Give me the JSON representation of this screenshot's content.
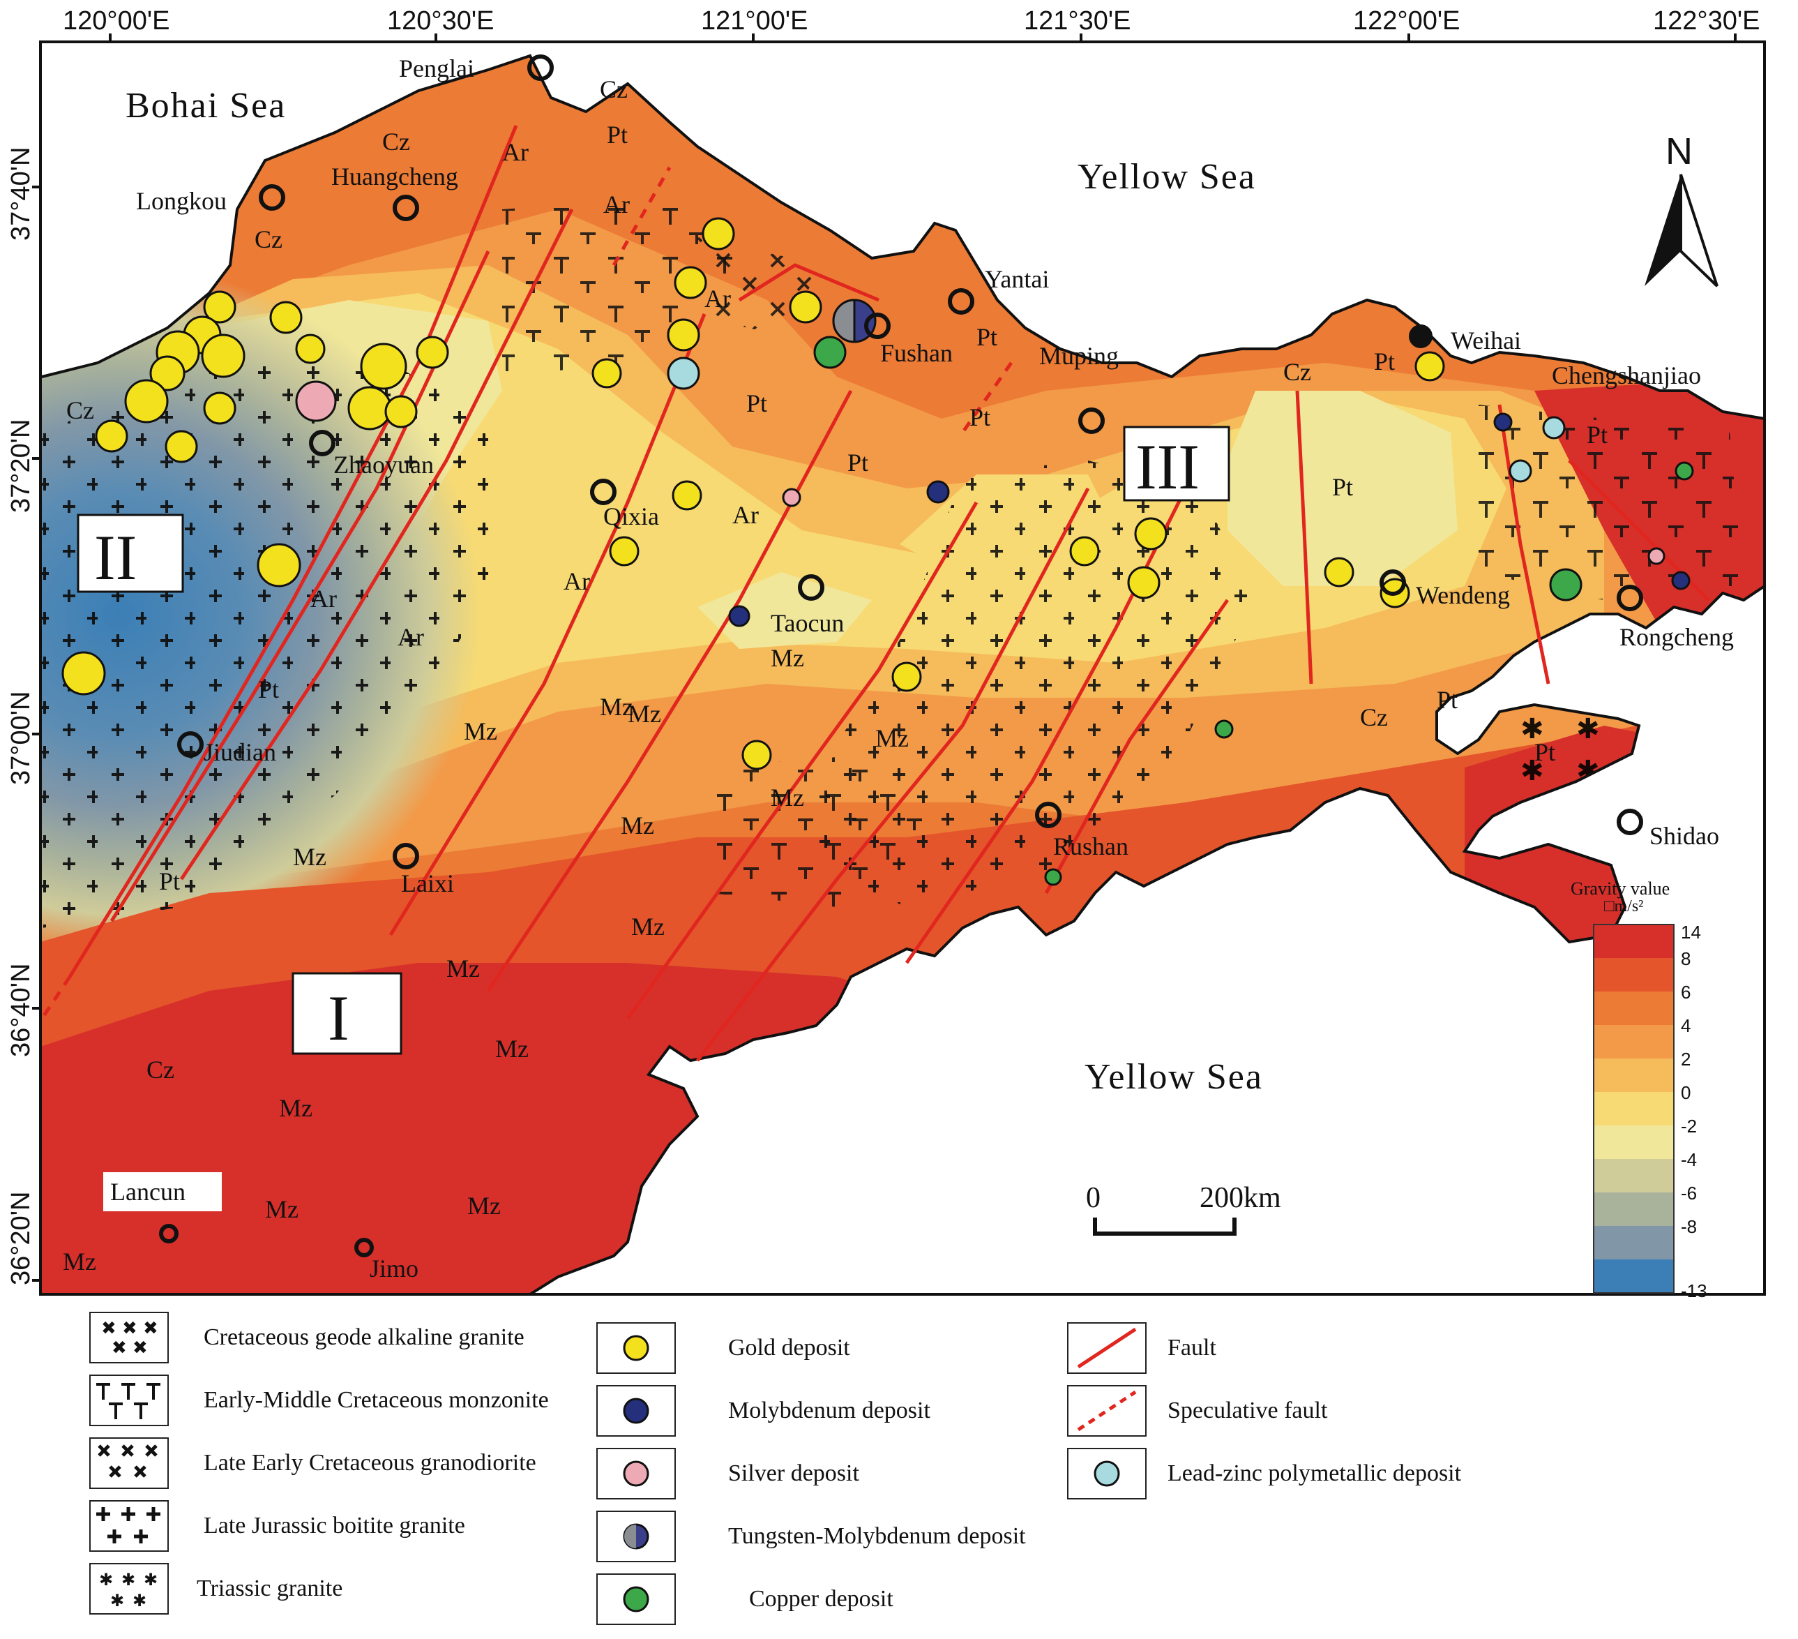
{
  "axes": {
    "lon_labels": [
      "120°00'E",
      "120°30'E",
      "121°00'E",
      "121°30'E",
      "122°00'E",
      "122°30'E"
    ],
    "lat_labels": [
      "37°40'N",
      "37°20'N",
      "37°00'N",
      "36°40'N",
      "36°20'N"
    ]
  },
  "seas": {
    "bohai": "Bohai Sea",
    "yellow_north": "Yellow Sea",
    "yellow_south": "Yellow Sea"
  },
  "cities": {
    "penglai": "Penglai",
    "longkou": "Longkou",
    "huangcheng": "Huangcheng",
    "yantai": "Yantai",
    "fushan": "Fushan",
    "muping": "Muping",
    "weihai": "Weihai",
    "chengshanjiao": "Chengshanjiao",
    "zhaoyuan": "Zhaoyuan",
    "qixia": "Qixia",
    "taocun": "Taocun",
    "wendeng": "Wendeng",
    "rongcheng": "Rongcheng",
    "jiudian": "Jiudian",
    "laixi": "Laixi",
    "rushan": "Rushan",
    "shidao": "Shidao",
    "lancun": "Lancun",
    "jimo": "Jimo"
  },
  "regions": {
    "r1": "I",
    "r2": "II",
    "r3": "III"
  },
  "units": {
    "cz": "Cz",
    "ar": "Ar",
    "pt": "Pt",
    "mz": "Mz"
  },
  "north_arrow": "N",
  "scale_bar": {
    "start": "0",
    "end": "200km"
  },
  "colorbar": {
    "title": "Gravity value",
    "unit": "□m/s²",
    "ticks": [
      "14",
      "8",
      "6",
      "4",
      "2",
      "0",
      "-2",
      "-4",
      "-6",
      "-8",
      "-13"
    ],
    "colors": [
      "#d7302b",
      "#e4552b",
      "#ec7b35",
      "#f29a48",
      "#f6bb5a",
      "#f7da73",
      "#f1e79a",
      "#cfcc9a",
      "#a9b29b",
      "#8197a8",
      "#3b7fb6"
    ]
  },
  "legend": {
    "lithology": [
      {
        "symbol": "geode-cross-icon",
        "label": "Cretaceous geode alkaline granite"
      },
      {
        "symbol": "monzonite-t-icon",
        "label": "Early-Middle Cretaceous monzonite"
      },
      {
        "symbol": "granodiorite-x-icon",
        "label": "Late Early Cretaceous  granodiorite"
      },
      {
        "symbol": "granite-plus-icon",
        "label": "Late Jurassic boitite granite"
      },
      {
        "symbol": "triassic-star-icon",
        "label": "Triassic granite"
      }
    ],
    "deposits": [
      {
        "symbol": "gold-dot-icon",
        "color": "#f4e11d",
        "label": "Gold deposit"
      },
      {
        "symbol": "molybdenum-dot-icon",
        "color": "#24307c",
        "label": "Molybdenum deposit"
      },
      {
        "symbol": "silver-dot-icon",
        "color": "#eeaab4",
        "label": "Silver deposit"
      },
      {
        "symbol": "tungsten-molybdenum-dot-icon",
        "color": "#3a3f8a",
        "label": "Tungsten-Molybdenum deposit"
      },
      {
        "symbol": "copper-dot-icon",
        "color": "#3da84a",
        "label": "Copper deposit"
      }
    ],
    "structures": [
      {
        "symbol": "fault-line-icon",
        "color": "#e0261f",
        "label": "Fault"
      },
      {
        "symbol": "speculative-fault-icon",
        "color": "#e0261f",
        "label": "Speculative fault"
      },
      {
        "symbol": "lead-zinc-dot-icon",
        "color": "#a7dbe0",
        "label": "Lead-zinc polymetallic deposit"
      }
    ]
  }
}
